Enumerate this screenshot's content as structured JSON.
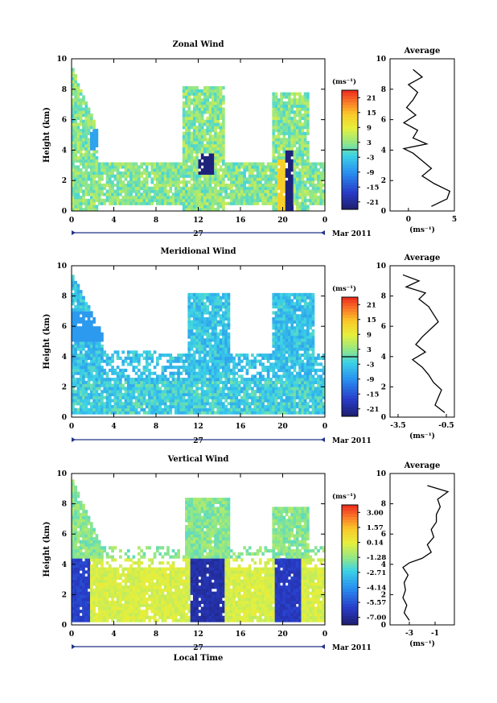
{
  "chart_data": [
    {
      "type": "heatmap",
      "title": "Zonal Wind",
      "ylabel": "Height (km)",
      "xlim": [
        0,
        24
      ],
      "ylim": [
        0,
        10
      ],
      "x_ticks": [
        "0",
        "4",
        "8",
        "12",
        "16",
        "20",
        "0"
      ],
      "y_ticks": [
        "0",
        "2",
        "4",
        "6",
        "8",
        "10"
      ],
      "date_label": "27",
      "month_label": "Mar 2011",
      "colorbar": {
        "unit": "(ms⁻¹)",
        "ticks": [
          "21",
          "15",
          "9",
          "3",
          "-3",
          "-9",
          "-15",
          "-21"
        ],
        "min": -24,
        "max": 24,
        "zero_line": 0
      },
      "average_profile": {
        "title": "Average",
        "xlabel": "(ms⁻¹)",
        "x_ticks": [
          "0",
          "5"
        ],
        "xlim": [
          -2,
          5
        ],
        "heights": [
          0.3,
          0.8,
          1.3,
          1.8,
          2.3,
          2.8,
          3.3,
          3.8,
          4.1,
          4.4,
          4.8,
          5.3,
          5.8,
          6.3,
          6.8,
          7.3,
          7.8,
          8.3,
          8.8,
          9.3
        ],
        "values": [
          2.5,
          4.2,
          4.5,
          2.8,
          1.5,
          2.5,
          1.5,
          0.5,
          -0.5,
          2.0,
          0.5,
          1.0,
          -0.5,
          0.8,
          -0.2,
          0.5,
          1.0,
          0.0,
          1.5,
          0.5
        ]
      }
    },
    {
      "type": "heatmap",
      "title": "Meridional Wind",
      "ylabel": "Height (km)",
      "xlim": [
        0,
        24
      ],
      "ylim": [
        0,
        10
      ],
      "x_ticks": [
        "0",
        "4",
        "8",
        "12",
        "16",
        "20",
        "0"
      ],
      "y_ticks": [
        "0",
        "2",
        "4",
        "6",
        "8",
        "10"
      ],
      "date_label": "27",
      "month_label": "Mar 2011",
      "colorbar": {
        "unit": "(ms⁻¹)",
        "ticks": [
          "21",
          "15",
          "9",
          "3",
          "-3",
          "-9",
          "-15",
          "-21"
        ],
        "min": -24,
        "max": 24,
        "zero_line": 0
      },
      "average_profile": {
        "title": "Average",
        "xlabel": "(ms⁻¹)",
        "x_ticks": [
          "-3.5",
          "-0.5"
        ],
        "xlim": [
          -4,
          0
        ],
        "heights": [
          0.3,
          0.8,
          1.3,
          1.8,
          2.3,
          2.8,
          3.3,
          3.8,
          4.3,
          4.8,
          5.3,
          5.8,
          6.3,
          6.8,
          7.3,
          7.8,
          8.2,
          8.6,
          9.0,
          9.4
        ],
        "values": [
          -0.6,
          -1.2,
          -1.0,
          -0.8,
          -1.3,
          -1.6,
          -2.0,
          -2.6,
          -1.8,
          -2.4,
          -2.0,
          -1.5,
          -1.0,
          -1.3,
          -1.6,
          -2.2,
          -1.8,
          -3.0,
          -2.2,
          -3.2
        ]
      }
    },
    {
      "type": "heatmap",
      "title": "Vertical Wind",
      "ylabel": "Height (km)",
      "xlabel": "Local Time",
      "xlim": [
        0,
        24
      ],
      "ylim": [
        0,
        10
      ],
      "x_ticks": [
        "0",
        "4",
        "8",
        "12",
        "16",
        "20",
        "0"
      ],
      "y_ticks": [
        "0",
        "2",
        "4",
        "6",
        "8",
        "10"
      ],
      "date_label": "27",
      "month_label": "Mar 2011",
      "colorbar": {
        "unit": "(ms⁻¹)",
        "ticks": [
          "3.00",
          "1.57",
          "0.14",
          "-1.28",
          "-2.71",
          "-4.14",
          "-5.57",
          "-7.00"
        ],
        "min": -7.7,
        "max": 3.7
      },
      "average_profile": {
        "title": "Average",
        "xlabel": "(ms⁻¹)",
        "x_ticks": [
          "-3",
          "-1"
        ],
        "xlim": [
          -4.5,
          0.5
        ],
        "heights": [
          0.3,
          0.8,
          1.3,
          1.8,
          2.3,
          2.8,
          3.3,
          3.8,
          4.1,
          4.4,
          4.8,
          5.3,
          5.8,
          6.3,
          6.8,
          7.3,
          7.8,
          8.3,
          8.8,
          9.2
        ],
        "values": [
          -3.0,
          -3.4,
          -3.2,
          -3.5,
          -3.3,
          -3.4,
          -3.1,
          -3.5,
          -3.0,
          -2.0,
          -1.3,
          -1.6,
          -1.1,
          -1.3,
          -0.9,
          -0.9,
          -0.6,
          -0.8,
          0.0,
          -1.6
        ]
      }
    }
  ]
}
